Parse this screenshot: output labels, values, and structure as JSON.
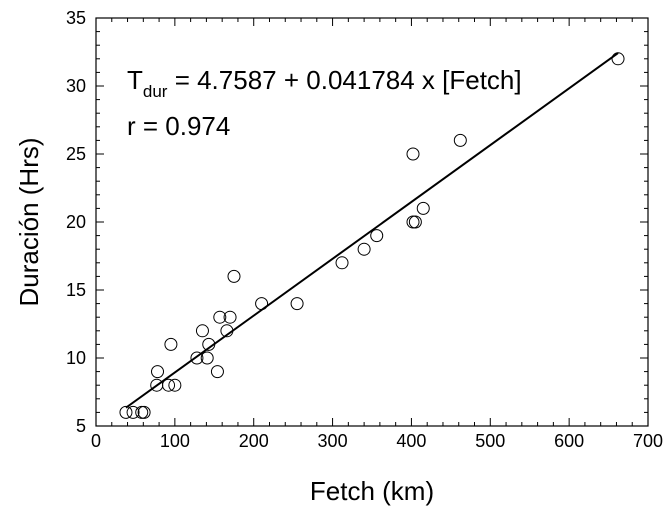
{
  "chart_data": {
    "type": "scatter",
    "xlabel": "Fetch (km)",
    "ylabel": "Duración (Hrs)",
    "xlim": [
      0,
      700
    ],
    "ylim": [
      5,
      35
    ],
    "x_ticks": [
      "0",
      "100",
      "200",
      "300",
      "400",
      "500",
      "600",
      "700"
    ],
    "y_ticks": [
      "5",
      "10",
      "15",
      "20",
      "25",
      "30",
      "35"
    ],
    "grid": false,
    "annotation": {
      "eq_T": "T",
      "eq_sub": "dur",
      "eq_rest": " = 4.7587 + 0.041784 x [Fetch]",
      "r_text": "r = 0.974"
    },
    "fit_line": {
      "intercept": 4.7587,
      "slope": 0.041784,
      "x_start": 38,
      "x_end": 662
    },
    "points": [
      {
        "x": 38,
        "y": 6
      },
      {
        "x": 47,
        "y": 6
      },
      {
        "x": 58,
        "y": 6
      },
      {
        "x": 61,
        "y": 6
      },
      {
        "x": 77,
        "y": 8
      },
      {
        "x": 78,
        "y": 9
      },
      {
        "x": 92,
        "y": 8
      },
      {
        "x": 95,
        "y": 11
      },
      {
        "x": 100,
        "y": 8
      },
      {
        "x": 128,
        "y": 10
      },
      {
        "x": 135,
        "y": 12
      },
      {
        "x": 141,
        "y": 10
      },
      {
        "x": 143,
        "y": 11
      },
      {
        "x": 154,
        "y": 9
      },
      {
        "x": 157,
        "y": 13
      },
      {
        "x": 166,
        "y": 12
      },
      {
        "x": 170,
        "y": 13
      },
      {
        "x": 175,
        "y": 16
      },
      {
        "x": 210,
        "y": 14
      },
      {
        "x": 255,
        "y": 14
      },
      {
        "x": 312,
        "y": 17
      },
      {
        "x": 340,
        "y": 18
      },
      {
        "x": 356,
        "y": 19
      },
      {
        "x": 402,
        "y": 25
      },
      {
        "x": 402,
        "y": 20
      },
      {
        "x": 405,
        "y": 20
      },
      {
        "x": 415,
        "y": 21
      },
      {
        "x": 462,
        "y": 26
      },
      {
        "x": 662,
        "y": 32
      }
    ]
  }
}
